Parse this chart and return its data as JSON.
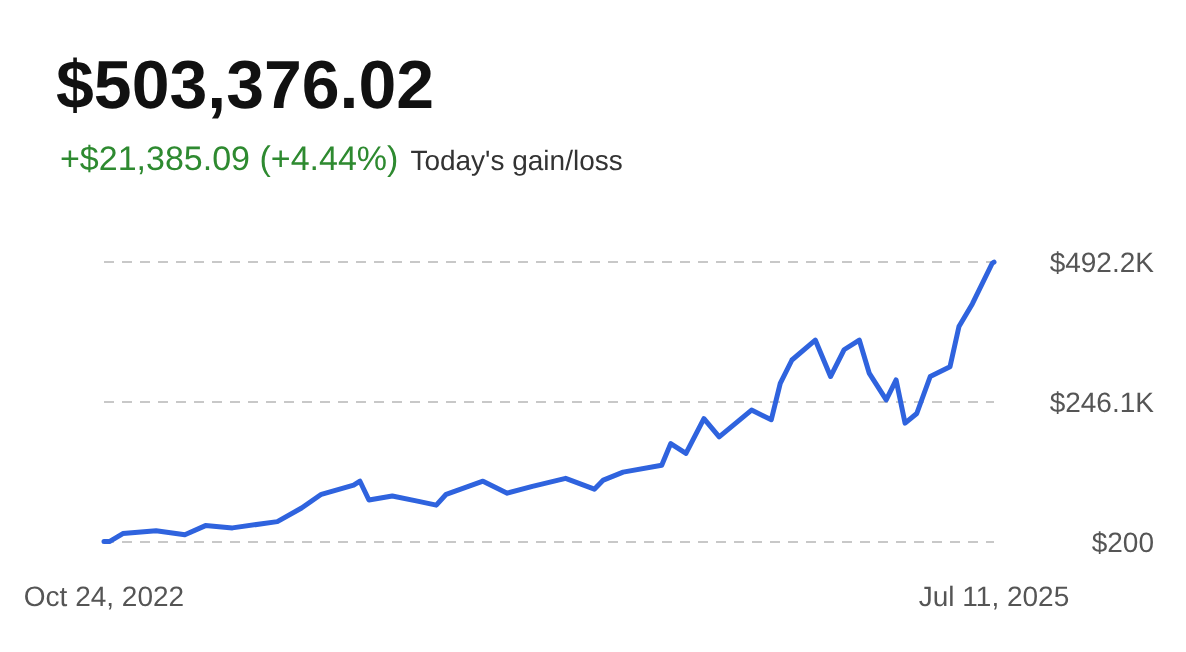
{
  "chart_data": {
    "type": "line",
    "title": "$503,376.02",
    "subtitle": "+$21,385.09 (+4.44%)",
    "annotations": [
      "Today's gain/loss"
    ],
    "x": [
      "2022-10-24",
      "2022-10-30",
      "2022-11-14",
      "2022-12-21",
      "2023-01-22",
      "2023-02-14",
      "2023-03-16",
      "2023-05-05",
      "2023-06-01",
      "2023-06-23",
      "2023-07-29",
      "2023-08-05",
      "2023-08-15",
      "2023-09-10",
      "2023-10-08",
      "2023-10-29",
      "2023-11-09",
      "2023-12-20",
      "2024-01-16",
      "2024-02-13",
      "2024-03-21",
      "2024-04-22",
      "2024-05-02",
      "2024-05-24",
      "2024-07-06",
      "2024-07-16",
      "2024-08-02",
      "2024-08-22",
      "2024-09-08",
      "2024-10-14",
      "2024-11-05",
      "2024-11-15",
      "2024-11-28",
      "2024-12-24",
      "2025-01-10",
      "2025-01-25",
      "2025-02-11",
      "2025-02-22",
      "2025-03-13",
      "2025-03-24",
      "2025-04-03",
      "2025-04-16",
      "2025-05-01",
      "2025-05-23",
      "2025-06-02",
      "2025-06-17",
      "2025-07-09",
      "2025-07-11"
    ],
    "series": [
      {
        "color": "#2f63de",
        "values": [
          1000,
          1000,
          15000,
          20000,
          13000,
          29000,
          25000,
          36000,
          60000,
          84000,
          100000,
          107000,
          74000,
          81000,
          72000,
          65000,
          84000,
          107000,
          86000,
          98000,
          112000,
          93000,
          109000,
          123000,
          135000,
          173000,
          156000,
          217000,
          185000,
          232000,
          215000,
          279000,
          320000,
          355000,
          291000,
          338000,
          355000,
          297000,
          250000,
          285000,
          209000,
          226000,
          291000,
          308000,
          379000,
          419000,
          490000,
          492000
        ]
      }
    ],
    "xlim": [
      "2022-10-24",
      "2025-07-11"
    ],
    "xticks": [
      {
        "value": "2022-10-24",
        "label": "Oct 24, 2022"
      },
      {
        "value": "2025-07-11",
        "label": "Jul 11, 2025"
      }
    ],
    "ylim": [
      200,
      492200
    ],
    "yticks": [
      {
        "value": 200,
        "label": "$200"
      },
      {
        "value": 246100,
        "label": "$246.1K"
      },
      {
        "value": 492200,
        "label": "$492.2K"
      }
    ],
    "grid": "y",
    "marker": "none",
    "line_style": "solid"
  }
}
